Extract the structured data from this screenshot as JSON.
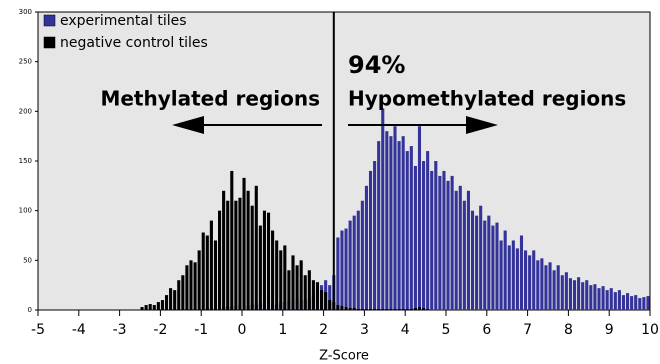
{
  "chart_data": {
    "type": "histogram",
    "xlabel": "Z-Score",
    "annotations": [
      "94%",
      "Methylated regions",
      "Hypomethylated regions"
    ],
    "threshold": 2.25,
    "xlim": [
      -5,
      10
    ],
    "ylim": [
      0,
      300
    ],
    "xticks": [
      -5,
      -4,
      -3,
      -2,
      -1,
      0,
      1,
      2,
      3,
      4,
      5,
      6,
      7,
      8,
      9,
      10
    ],
    "yticks": [
      0,
      50,
      100,
      150,
      200,
      250,
      300
    ],
    "legend": "upper left",
    "bins": [
      -2.6,
      -2.5,
      -2.4,
      -2.3,
      -2.2,
      -2.1,
      -2.0,
      -1.9,
      -1.8,
      -1.7,
      -1.6,
      -1.5,
      -1.4,
      -1.3,
      -1.2,
      -1.1,
      -1.0,
      -0.9,
      -0.8,
      -0.7,
      -0.6,
      -0.5,
      -0.4,
      -0.3,
      -0.2,
      -0.1,
      0.0,
      0.1,
      0.2,
      0.3,
      0.4,
      0.5,
      0.6,
      0.7,
      0.8,
      0.9,
      1.0,
      1.1,
      1.2,
      1.3,
      1.4,
      1.5,
      1.6,
      1.7,
      1.8,
      1.9,
      2.0,
      2.1,
      2.2,
      2.3,
      2.4,
      2.5,
      2.6,
      2.7,
      2.8,
      2.9,
      3.0,
      3.1,
      3.2,
      3.3,
      3.4,
      3.5,
      3.6,
      3.7,
      3.8,
      3.9,
      4.0,
      4.1,
      4.2,
      4.3,
      4.4,
      4.5,
      4.6,
      4.7,
      4.8,
      4.9,
      5.0,
      5.1,
      5.2,
      5.3,
      5.4,
      5.5,
      5.6,
      5.7,
      5.8,
      5.9,
      6.0,
      6.1,
      6.2,
      6.3,
      6.4,
      6.5,
      6.6,
      6.7,
      6.8,
      6.9,
      7.0,
      7.1,
      7.2,
      7.3,
      7.4,
      7.5,
      7.6,
      7.7,
      7.8,
      7.9,
      8.0,
      8.1,
      8.2,
      8.3,
      8.4,
      8.5,
      8.6,
      8.7,
      8.8,
      8.9,
      9.0,
      9.1,
      9.2,
      9.3,
      9.4,
      9.5,
      9.6,
      9.7,
      9.8,
      9.9,
      10.0
    ],
    "series": [
      {
        "name": "experimental tiles",
        "color": "#33339a",
        "values": [
          0,
          0,
          0,
          0,
          0,
          0,
          0,
          0,
          0,
          0,
          0,
          0,
          0,
          0,
          0,
          0,
          1,
          2,
          2,
          3,
          2,
          3,
          4,
          3,
          4,
          5,
          5,
          4,
          6,
          5,
          8,
          6,
          7,
          5,
          6,
          8,
          8,
          10,
          9,
          12,
          10,
          10,
          12,
          15,
          20,
          25,
          30,
          25,
          35,
          73,
          80,
          82,
          90,
          95,
          100,
          110,
          125,
          140,
          150,
          170,
          203,
          180,
          175,
          185,
          170,
          175,
          160,
          165,
          145,
          185,
          150,
          160,
          140,
          150,
          135,
          140,
          130,
          135,
          120,
          125,
          110,
          120,
          100,
          95,
          105,
          90,
          95,
          85,
          88,
          70,
          80,
          65,
          70,
          62,
          75,
          60,
          55,
          60,
          50,
          52,
          45,
          48,
          40,
          45,
          35,
          38,
          32,
          30,
          33,
          28,
          30,
          25,
          26,
          22,
          24,
          20,
          22,
          18,
          20,
          15,
          17,
          14,
          15,
          12,
          13,
          14
        ]
      },
      {
        "name": "negative control tiles",
        "color": "#000000",
        "values": [
          0,
          3,
          5,
          6,
          5,
          8,
          10,
          15,
          22,
          20,
          30,
          35,
          45,
          50,
          48,
          60,
          78,
          75,
          90,
          70,
          100,
          120,
          110,
          140,
          110,
          113,
          133,
          120,
          105,
          125,
          85,
          100,
          98,
          80,
          70,
          60,
          65,
          40,
          55,
          45,
          50,
          35,
          40,
          30,
          28,
          20,
          18,
          10,
          8,
          5,
          4,
          3,
          2,
          2,
          1,
          1,
          1,
          1,
          1,
          1,
          1,
          1,
          1,
          1,
          1,
          1,
          1,
          1,
          2,
          3,
          2,
          1,
          0,
          0,
          0,
          0,
          0,
          0,
          0,
          0,
          0,
          0,
          0,
          0,
          0,
          0,
          0,
          0,
          0,
          0,
          0,
          0,
          0,
          0,
          0,
          0,
          0,
          0,
          0,
          0,
          0,
          0,
          0,
          0,
          0,
          0,
          0,
          0,
          0,
          0,
          0,
          0,
          0,
          0,
          0,
          0,
          0,
          0,
          0,
          0,
          0,
          0,
          0,
          0,
          0,
          0
        ]
      }
    ]
  }
}
